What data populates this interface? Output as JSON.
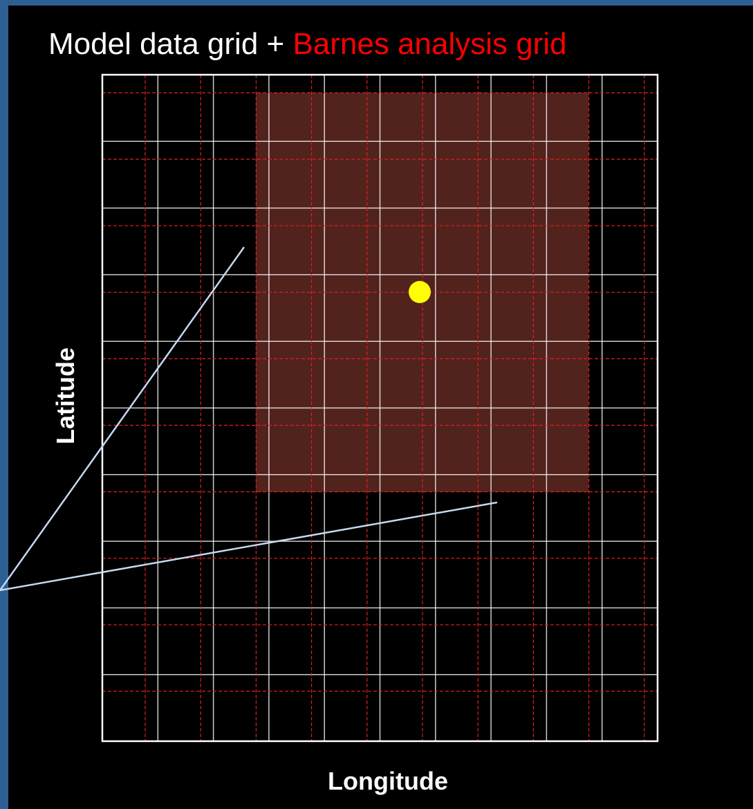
{
  "title": {
    "main": "Model data grid + ",
    "highlight": "Barnes analysis grid"
  },
  "axes": {
    "y_label": "Latitude",
    "x_label": "Longitude"
  }
}
